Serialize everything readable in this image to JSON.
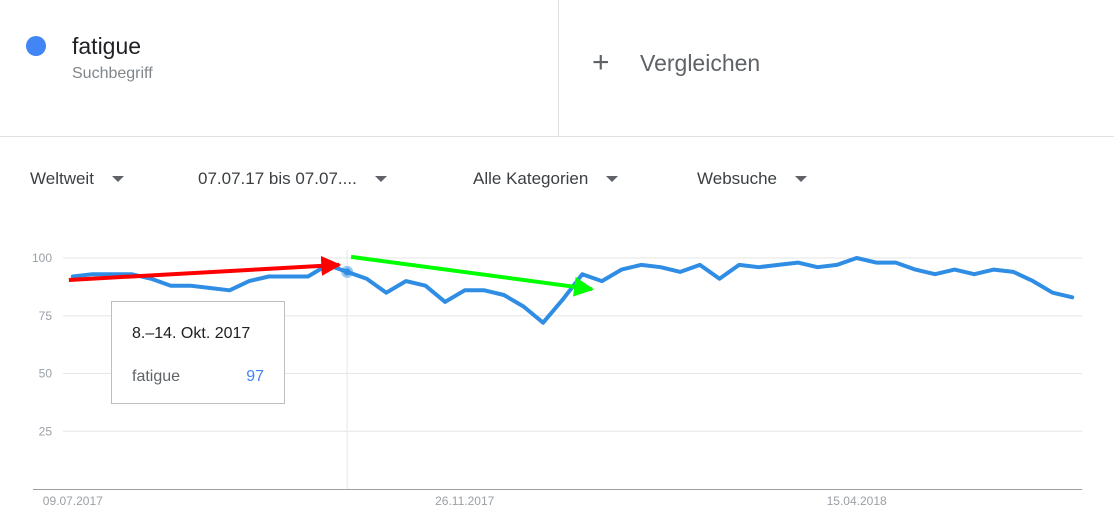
{
  "term": {
    "name": "fatigue",
    "type": "Suchbegriff",
    "color": "#4285f4"
  },
  "compare": {
    "icon": "plus-icon",
    "label": "Vergleichen"
  },
  "filters": [
    {
      "label": "Weltweit"
    },
    {
      "label": "07.07.17 bis 07.07...."
    },
    {
      "label": "Alle Kategorien"
    },
    {
      "label": "Websuche"
    }
  ],
  "tooltip": {
    "date": "8.–14. Okt. 2017",
    "term": "fatigue",
    "value": "97"
  },
  "chart_data": {
    "type": "line",
    "y_ticks": [
      "100",
      "75",
      "50",
      "25"
    ],
    "ylim": [
      0,
      100
    ],
    "x_tick_labels": [
      "09.07.2017",
      "26.11.2017",
      "15.04.2018"
    ],
    "x_tick_indices": [
      0,
      20,
      40
    ],
    "grid": true,
    "highlight_index": 14,
    "series": [
      {
        "name": "fatigue",
        "color": "#2f8de4",
        "values": [
          92,
          93,
          93,
          93,
          91,
          88,
          88,
          87,
          86,
          90,
          92,
          92,
          92,
          97,
          94,
          91,
          85,
          90,
          88,
          81,
          86,
          86,
          84,
          79,
          72,
          82,
          93,
          90,
          95,
          97,
          96,
          94,
          97,
          91,
          97,
          96,
          97,
          98,
          96,
          97,
          100,
          98,
          98,
          95,
          93,
          95,
          93,
          95,
          94,
          90,
          85,
          83
        ]
      }
    ],
    "annotations": [
      {
        "type": "arrow",
        "color": "#ff0000",
        "from_index": -0.2,
        "from_value": 90.5,
        "to_index": 13.6,
        "to_value": 97
      },
      {
        "type": "arrow",
        "color": "#00ff00",
        "from_index": 14.2,
        "from_value": 100.5,
        "to_index": 26.5,
        "to_value": 86.5
      }
    ]
  }
}
